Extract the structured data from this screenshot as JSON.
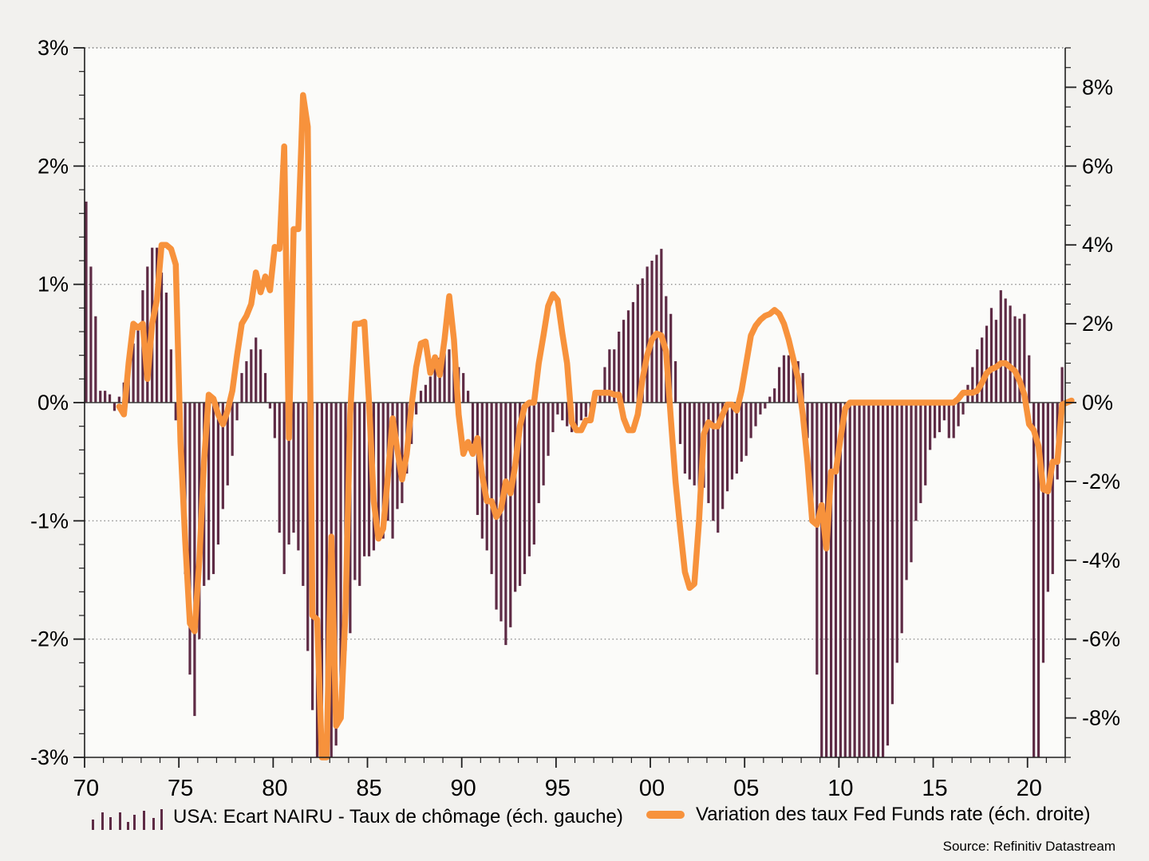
{
  "chart_data": {
    "type": "combo-bar-line",
    "title": "",
    "source": "Source: Refinitiv Datastream",
    "colors": {
      "bar": "#5e2b45",
      "line": "#f7923c",
      "grid": "#8f8f8f",
      "axis": "#1f1f1f",
      "zero_line": "#3c3c3c",
      "plot_bg": "#fbfbf9",
      "page_bg": "#f2f1ee"
    },
    "legend": [
      {
        "label": "USA: Ecart NAIRU - Taux de chômage (éch. gauche)",
        "type": "bars",
        "color": "#5e2b45"
      },
      {
        "label": "Variation des taux Fed Funds rate (éch. droite)",
        "type": "line",
        "color": "#f7923c"
      }
    ],
    "left_axis": {
      "min": -3,
      "max": 3,
      "tick_values": [
        3,
        2,
        1,
        0,
        -1,
        -2,
        -3
      ],
      "tick_labels": [
        "3%",
        "2%",
        "1%",
        "0%",
        "-1%",
        "-2%",
        "-3%"
      ],
      "minor_step": 0.2
    },
    "right_axis": {
      "min": -9,
      "max": 9,
      "tick_values": [
        8,
        6,
        4,
        2,
        0,
        -2,
        -4,
        -6,
        -8
      ],
      "tick_labels": [
        "8%",
        "6%",
        "4%",
        "2%",
        "0%",
        "-2%",
        "-4%",
        "-6%",
        "-8%"
      ],
      "minor_step": 0.5
    },
    "x_axis": {
      "min": 1970,
      "max": 2022,
      "tick_values": [
        1970,
        1975,
        1980,
        1985,
        1990,
        1995,
        2000,
        2005,
        2010,
        2015,
        2020
      ],
      "tick_labels": [
        "70",
        "75",
        "80",
        "85",
        "90",
        "95",
        "00",
        "05",
        "10",
        "15",
        "20"
      ],
      "minor_step": 1,
      "grid": false
    },
    "grid_values_left": [
      3,
      2,
      1,
      -1,
      -2
    ],
    "bars": {
      "name": "USA: Ecart NAIRU - Taux de chômage",
      "scale": "left",
      "start": 1970.0,
      "step": 0.25,
      "values": [
        1.7,
        1.15,
        0.73,
        0.1,
        0.1,
        0.07,
        -0.07,
        0.05,
        0.17,
        0.33,
        0.5,
        0.65,
        0.95,
        1.15,
        1.31,
        1.31,
        1.1,
        0.93,
        0.45,
        -0.15,
        -0.6,
        -1.45,
        -2.3,
        -2.65,
        -2.0,
        -1.55,
        -1.5,
        -1.45,
        -1.2,
        -0.9,
        -0.7,
        -0.45,
        -0.15,
        0.25,
        0.35,
        0.45,
        0.55,
        0.45,
        0.25,
        -0.05,
        -0.3,
        -1.1,
        -1.45,
        -1.2,
        -1.1,
        -1.25,
        -1.55,
        -2.1,
        -2.6,
        -3.0,
        -3.4,
        -3.8,
        -3.3,
        -2.9,
        -2.45,
        -2.1,
        -1.95,
        -1.5,
        -1.55,
        -1.3,
        -1.3,
        -1.25,
        -1.15,
        -1.15,
        -1.0,
        -1.15,
        -0.9,
        -0.85,
        -0.6,
        -0.35,
        -0.1,
        0.1,
        0.15,
        0.22,
        0.3,
        0.38,
        0.42,
        0.45,
        0.4,
        0.3,
        0.25,
        0.1,
        -0.35,
        -0.95,
        -1.15,
        -1.25,
        -1.45,
        -1.75,
        -1.85,
        -2.05,
        -1.9,
        -1.6,
        -1.55,
        -1.45,
        -1.3,
        -1.2,
        -0.85,
        -0.7,
        -0.45,
        -0.25,
        -0.1,
        -0.15,
        -0.2,
        -0.25,
        -0.2,
        -0.15,
        -0.12,
        -0.08,
        0.05,
        0.1,
        0.3,
        0.45,
        0.45,
        0.6,
        0.7,
        0.78,
        0.85,
        1.0,
        1.05,
        1.15,
        1.2,
        1.25,
        1.3,
        0.9,
        0.75,
        0.35,
        -0.35,
        -0.6,
        -0.65,
        -0.7,
        -0.75,
        -0.72,
        -0.85,
        -1.0,
        -1.1,
        -0.9,
        -0.75,
        -0.65,
        -0.6,
        -0.5,
        -0.45,
        -0.3,
        -0.2,
        -0.1,
        -0.05,
        0.05,
        0.12,
        0.3,
        0.4,
        0.4,
        0.42,
        0.35,
        0.25,
        -0.3,
        -1.0,
        -2.3,
        -3.3,
        -3.8,
        -4.0,
        -4.0,
        -4.0,
        -3.9,
        -3.8,
        -3.7,
        -3.6,
        -3.6,
        -3.5,
        -3.4,
        -3.3,
        -3.1,
        -2.9,
        -2.55,
        -2.2,
        -1.95,
        -1.5,
        -1.35,
        -1.0,
        -0.85,
        -0.7,
        -0.4,
        -0.3,
        -0.25,
        -0.15,
        -0.3,
        -0.3,
        -0.2,
        -0.1,
        0.15,
        0.3,
        0.45,
        0.55,
        0.65,
        0.8,
        0.7,
        0.95,
        0.88,
        0.82,
        0.73,
        0.71,
        0.75,
        0.4,
        -4.0,
        -3.5,
        -2.2,
        -1.6,
        -1.45,
        -0.65,
        0.3
      ]
    },
    "line": {
      "name": "Variation des taux Fed Funds rate",
      "scale": "right",
      "start": 1971.75,
      "step": 0.25,
      "values": [
        -0.1,
        -0.3,
        1.0,
        2.0,
        1.9,
        2.0,
        0.6,
        2.0,
        2.6,
        4.0,
        4.0,
        3.9,
        3.5,
        -1.0,
        -3.5,
        -5.6,
        -5.8,
        -4.0,
        -1.5,
        0.2,
        0.1,
        -0.3,
        -0.55,
        -0.2,
        0.3,
        1.2,
        2.0,
        2.2,
        2.5,
        3.3,
        2.8,
        3.2,
        2.85,
        3.95,
        3.9,
        6.5,
        -0.9,
        4.4,
        4.4,
        7.8,
        7.0,
        -5.4,
        -5.5,
        -9.0,
        -9.0,
        -3.4,
        -8.2,
        -8.0,
        -5.3,
        -0.3,
        2.0,
        2.0,
        2.05,
        0.0,
        -2.5,
        -3.45,
        -3.2,
        -1.85,
        -0.4,
        -1.2,
        -1.95,
        -1.3,
        -0.1,
        0.9,
        1.5,
        1.55,
        0.75,
        1.15,
        0.7,
        1.6,
        2.7,
        1.6,
        -0.3,
        -1.3,
        -1.0,
        -1.3,
        -0.9,
        -1.85,
        -2.5,
        -2.5,
        -2.9,
        -2.7,
        -2.0,
        -2.3,
        -1.6,
        -0.6,
        -0.1,
        0.0,
        0.0,
        1.0,
        1.7,
        2.45,
        2.75,
        2.6,
        1.75,
        1.0,
        -0.5,
        -0.7,
        -0.7,
        -0.45,
        -0.45,
        0.25,
        0.25,
        0.25,
        0.25,
        0.2,
        0.2,
        -0.4,
        -0.7,
        -0.7,
        -0.3,
        0.6,
        1.2,
        1.6,
        1.75,
        1.7,
        1.3,
        -0.4,
        -2.0,
        -3.2,
        -4.3,
        -4.7,
        -4.6,
        -3.0,
        -0.8,
        -0.5,
        -0.6,
        -0.6,
        -0.3,
        -0.05,
        -0.05,
        -0.2,
        0.3,
        1.0,
        1.7,
        1.95,
        2.1,
        2.2,
        2.25,
        2.35,
        2.25,
        2.0,
        1.6,
        1.1,
        0.6,
        -0.3,
        -1.5,
        -3.0,
        -3.1,
        -2.6,
        -3.7,
        -1.75,
        -1.75,
        -0.9,
        -0.15,
        0,
        0,
        0,
        0,
        0,
        0,
        0,
        0,
        0,
        0,
        0,
        0,
        0,
        0,
        0,
        0,
        0,
        0,
        0,
        0,
        0,
        0,
        0,
        0.1,
        0.25,
        0.25,
        0.25,
        0.3,
        0.5,
        0.75,
        0.85,
        0.9,
        1.0,
        1.0,
        0.9,
        0.8,
        0.55,
        0.2,
        -0.55,
        -0.7,
        -1.1,
        -2.2,
        -2.25,
        -1.5,
        -1.5,
        -0.05,
        0.0,
        0.05
      ]
    }
  }
}
